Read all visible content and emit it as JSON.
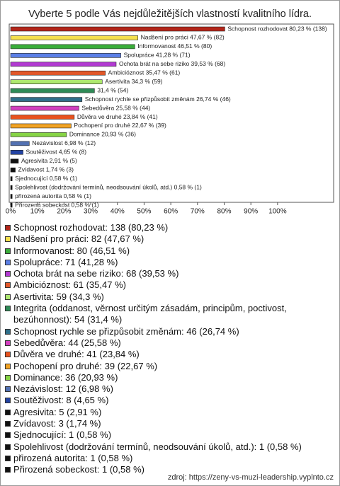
{
  "chart_data": {
    "type": "bar",
    "orientation": "horizontal",
    "title": "Vyberte 5 podle Vás nejdůležitějších vlastností kvalitního lídra.",
    "values": [
      80.23,
      47.67,
      46.51,
      41.28,
      39.53,
      35.47,
      34.3,
      31.4,
      26.74,
      25.58,
      23.84,
      22.67,
      20.93,
      6.98,
      4.65,
      2.91,
      1.74,
      0.58,
      0.58,
      0.58,
      0.58
    ],
    "value_labels": [
      "Schopnost rozhodovat 80,23 % (138)",
      "Nadšení pro práci 47,67 % (82)",
      "Informovanost 46,51 % (80)",
      "Spolupráce 41,28 % (71)",
      "Ochota brát na sebe riziko 39,53 % (68)",
      "Ambicióznost 35,47 % (61)",
      "Asertivita 34,3 % (59)",
      "31,4 % (54)",
      "Schopnost rychle se přizpůsobit změnám 26,74 % (46)",
      "Sebedůvěra 25,58 % (44)",
      "Důvěra ve druhé 23,84 % (41)",
      "Pochopení pro druhé 22,67 % (39)",
      "Dominance 20,93 % (36)",
      "Nezávislost 6,98 % (12)",
      "Soutěživost 4,65 % (8)",
      "Agresivita 2,91 % (5)",
      "Zvídavost 1,74 % (3)",
      "Sjednocující 0,58 % (1)",
      "Spolehlivost (dodržování termínů, neodsouvání úkolů, atd.) 0,58 % (1)",
      "přirozená autorita 0,58 % (1)",
      "Přirozená sobeckost 0,58 % (1)"
    ],
    "categories": [
      "Schopnost rozhodovat: 138 (80,23 %)",
      "Nadšení pro práci: 82 (47,67 %)",
      "Informovanost: 80 (46,51 %)",
      "Spolupráce: 71 (41,28 %)",
      "Ochota brát na sebe riziko: 68 (39,53 %)",
      "Ambicióznost: 61 (35,47 %)",
      "Asertivita: 59 (34,3 %)",
      "Integrita (oddanost, věrnost určitým zásadám, principům, poctivost, bezúhonnost): 54 (31,4 %)",
      "Schopnost rychle se přizpůsobit změnám: 46 (26,74 %)",
      "Sebedůvěra: 44 (25,58 %)",
      "Důvěra ve druhé: 41 (23,84 %)",
      "Pochopení pro druhé: 39 (22,67 %)",
      "Dominance: 36 (20,93 %)",
      "Nezávislost: 12 (6,98 %)",
      "Soutěživost: 8 (4,65 %)",
      "Agresivita: 5 (2,91 %)",
      "Zvídavost: 3 (1,74 %)",
      "Sjednocující: 1 (0,58 %)",
      "Spolehlivost (dodržování termínů, neodsouvání úkolů, atd.): 1 (0,58 %)",
      "přirozená autorita: 1 (0,58 %)",
      "Přirozená sobeckost: 1 (0,58 %)"
    ],
    "colors": [
      "#b3261a",
      "#f4e04c",
      "#3aad3a",
      "#5b7fe6",
      "#b23ad2",
      "#e2582a",
      "#aee870",
      "#2e8b57",
      "#2f6f8a",
      "#d23fbf",
      "#e8521e",
      "#f2a324",
      "#86d444",
      "#5271b2",
      "#2343a3",
      "#111111",
      "#111111",
      "#111111",
      "#111111",
      "#111111",
      "#111111"
    ],
    "xlim": [
      0,
      121
    ],
    "xticks": [
      {
        "value": 0,
        "label": "0%"
      },
      {
        "value": 10,
        "label": "10%"
      },
      {
        "value": 20,
        "label": "20%"
      },
      {
        "value": 30,
        "label": "30%"
      },
      {
        "value": 40,
        "label": "40%"
      },
      {
        "value": 50,
        "label": "50%"
      },
      {
        "value": 60,
        "label": "60%"
      },
      {
        "value": 70,
        "label": "70%"
      },
      {
        "value": 80,
        "label": "80%"
      },
      {
        "value": 90,
        "label": "90%"
      },
      {
        "value": 100,
        "label": "100%"
      }
    ],
    "source": "zdroj: https://zeny-vs-muzi-leadership.vyplnto.cz"
  }
}
